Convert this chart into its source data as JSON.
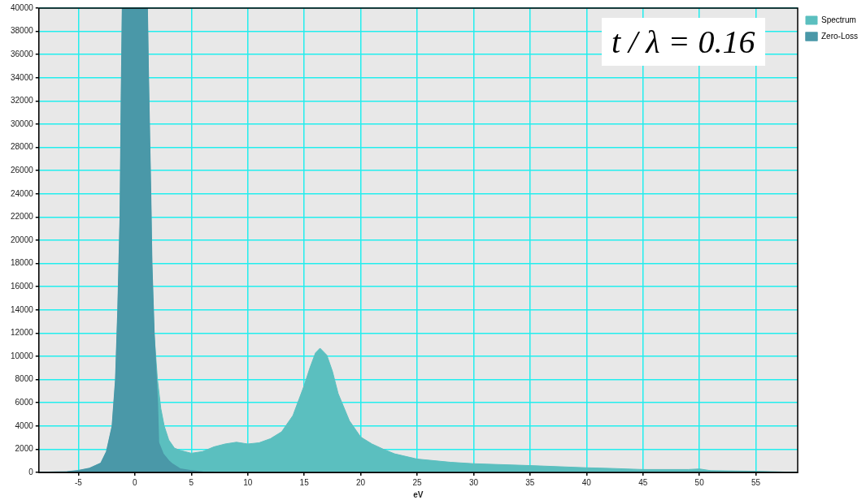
{
  "chart_data": {
    "type": "area",
    "xlabel": "eV",
    "annotations": [
      "t / λ = 0.16"
    ],
    "xlim": [
      -8.5,
      58.7
    ],
    "ylim": [
      0,
      40000
    ],
    "xticks": [
      -5,
      0,
      5,
      10,
      15,
      20,
      25,
      30,
      35,
      40,
      45,
      50,
      55
    ],
    "yticks": [
      0,
      2000,
      4000,
      6000,
      8000,
      10000,
      12000,
      14000,
      16000,
      18000,
      20000,
      22000,
      24000,
      26000,
      28000,
      30000,
      32000,
      34000,
      36000,
      38000,
      40000
    ],
    "grid": true,
    "legend": "right",
    "series": [
      {
        "name": "Spectrum",
        "color": "#5bbfbf",
        "x": [
          -8.5,
          -6,
          -5,
          -4,
          -3,
          -2.5,
          -2,
          -1.7,
          -1.5,
          -1.3,
          -1.2,
          -1.1,
          1.1,
          1.2,
          1.4,
          1.5,
          1.7,
          2,
          2.3,
          2.6,
          3,
          3.5,
          4,
          5,
          6,
          7,
          8,
          9,
          10,
          11,
          12,
          13,
          14,
          15,
          15.5,
          16,
          16.4,
          17,
          17.5,
          18,
          19,
          20,
          21,
          22,
          23,
          25,
          28,
          30,
          35,
          40,
          42,
          45,
          49,
          50,
          51,
          55,
          57,
          58.7
        ],
        "values": [
          0,
          50,
          150,
          350,
          800,
          1800,
          4000,
          8000,
          14000,
          22000,
          32000,
          40000,
          40000,
          34000,
          24000,
          18000,
          12000,
          8000,
          5500,
          4000,
          2800,
          2100,
          1900,
          1650,
          1800,
          2200,
          2450,
          2600,
          2450,
          2550,
          2900,
          3500,
          4900,
          7500,
          9000,
          10300,
          10700,
          10100,
          8700,
          6800,
          4450,
          3050,
          2450,
          2000,
          1600,
          1150,
          870,
          750,
          590,
          400,
          350,
          250,
          250,
          300,
          150,
          100,
          50,
          0
        ]
      },
      {
        "name": "Zero-Loss",
        "color": "#4a98a8",
        "x": [
          -8.5,
          -6,
          -5,
          -4,
          -3,
          -2.5,
          -2,
          -1.7,
          -1.5,
          -1.3,
          -1.2,
          -1.1,
          1.1,
          1.2,
          1.4,
          1.5,
          1.7,
          2,
          2.1,
          2.5,
          3,
          3.35,
          4,
          4.9,
          6,
          7
        ],
        "values": [
          0,
          50,
          150,
          350,
          800,
          1800,
          4000,
          8000,
          14000,
          22000,
          32000,
          40000,
          40000,
          34000,
          24000,
          18000,
          12000,
          6000,
          2560,
          1600,
          1000,
          700,
          300,
          150,
          30,
          0
        ]
      }
    ]
  }
}
